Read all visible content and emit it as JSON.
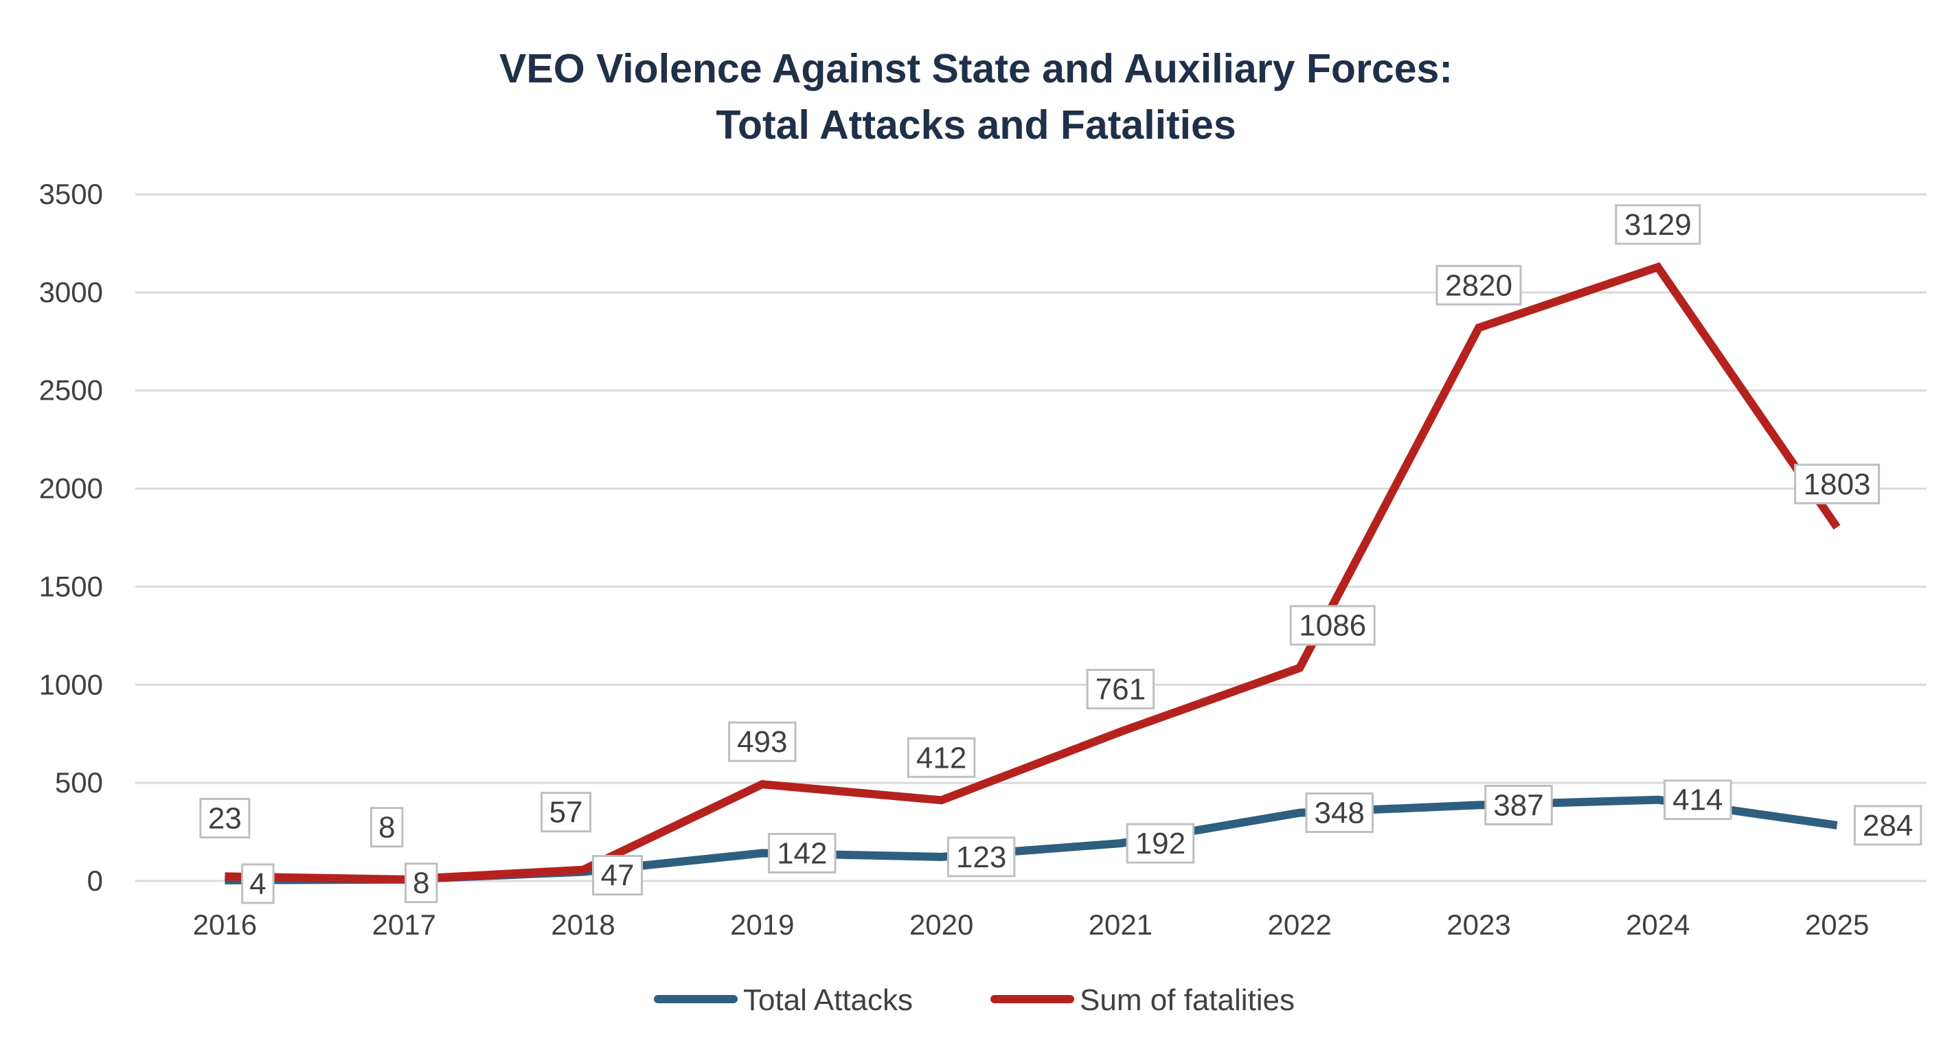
{
  "chart_data": {
    "type": "line",
    "title_lines": [
      "VEO Violence Against State and Auxiliary Forces:",
      "Total Attacks and Fatalities"
    ],
    "xlabel": "",
    "ylabel": "",
    "categories": [
      "2016",
      "2017",
      "2018",
      "2019",
      "2020",
      "2021",
      "2022",
      "2023",
      "2024",
      "2025"
    ],
    "ylim": [
      0,
      3500
    ],
    "yticks": [
      0,
      500,
      1000,
      1500,
      2000,
      2500,
      3000,
      3500
    ],
    "grid": true,
    "legend_position": "bottom",
    "series": [
      {
        "name": "Total Attacks",
        "color": "#2e5f7f",
        "values": [
          4,
          8,
          47,
          142,
          123,
          192,
          348,
          387,
          414,
          284
        ],
        "labels": [
          "4",
          "8",
          "47",
          "142",
          "123",
          "192",
          "348",
          "387",
          "414",
          "284"
        ]
      },
      {
        "name": "Sum of fatalities",
        "color": "#b5221e",
        "values": [
          23,
          8,
          57,
          493,
          412,
          761,
          1086,
          2820,
          3129,
          1803
        ],
        "labels": [
          "23",
          "8",
          "57",
          "493",
          "412",
          "761",
          "1086",
          "2820",
          "3129",
          "1803"
        ]
      }
    ],
    "colors": {
      "axis_text": "#404040",
      "gridline": "#d9d9d9",
      "label_border": "#bfbfbf",
      "title": "#1f3049"
    }
  }
}
